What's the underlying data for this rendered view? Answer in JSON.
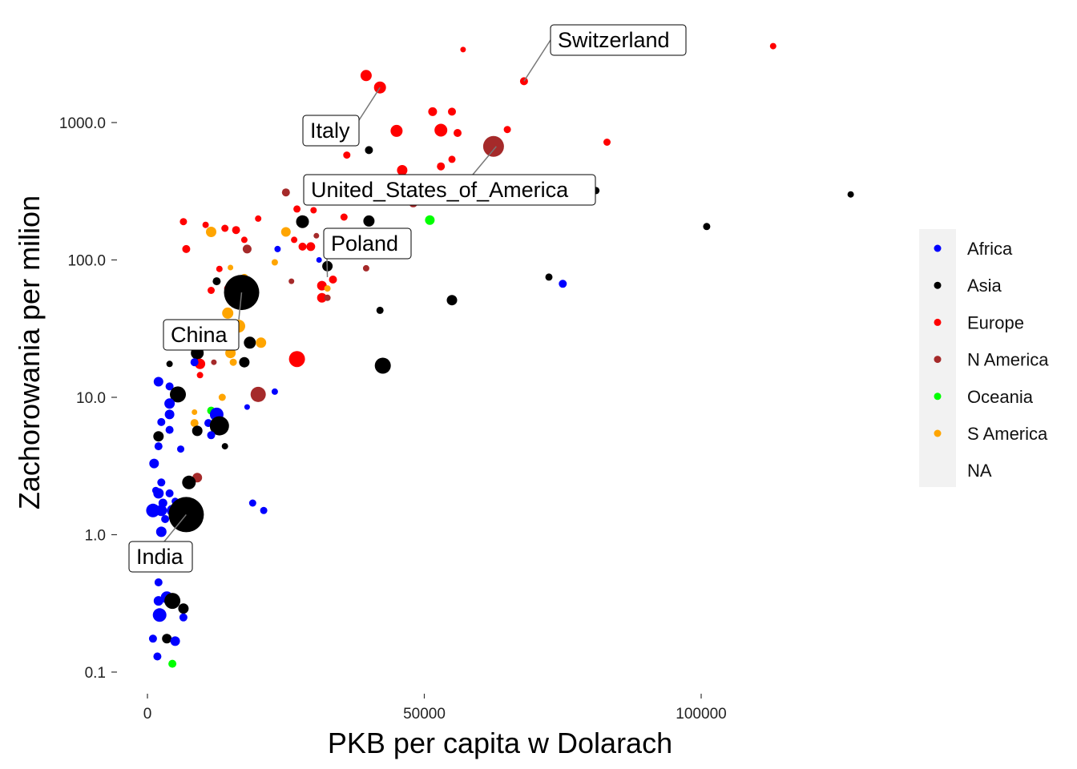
{
  "chart_data": {
    "type": "scatter",
    "xlabel": "PKB per capita w Dolarach",
    "ylabel": "Zachorowania per milion",
    "y_scale": "log10",
    "xlim": [
      -2500,
      135000
    ],
    "ylim": [
      0.08,
      5000
    ],
    "x_ticks": [
      0,
      50000,
      100000
    ],
    "x_tick_labels": [
      "0",
      "50000",
      "100000"
    ],
    "y_ticks": [
      0.1,
      1,
      10,
      100,
      1000
    ],
    "y_tick_labels": [
      "0.1",
      "1.0",
      "10.0",
      "100.0",
      "1000.0"
    ],
    "grid": false,
    "legend_position": "right",
    "legend": [
      {
        "name": "Africa",
        "color": "#0000ff"
      },
      {
        "name": "Asia",
        "color": "#000000"
      },
      {
        "name": "Europe",
        "color": "#ff0000"
      },
      {
        "name": "N America",
        "color": "#a52a2a"
      },
      {
        "name": "Oceania",
        "color": "#00ff00"
      },
      {
        "name": "S America",
        "color": "#ffa500"
      },
      {
        "name": "NA",
        "color": null
      }
    ],
    "annotations": [
      {
        "label": "Switzerland",
        "x": 68000,
        "y": 2000
      },
      {
        "label": "Italy",
        "x": 42000,
        "y": 1800
      },
      {
        "label": "United_States_of_America",
        "x": 63000,
        "y": 670
      },
      {
        "label": "Poland",
        "x": 32500,
        "y": 75
      },
      {
        "label": "China",
        "x": 17000,
        "y": 58
      },
      {
        "label": "India",
        "x": 7000,
        "y": 1.4
      }
    ],
    "points": [
      {
        "x": 113000,
        "y": 3600,
        "r": 4,
        "color": "#ff0000"
      },
      {
        "x": 57000,
        "y": 3400,
        "r": 3.5,
        "color": "#ff0000"
      },
      {
        "x": 39500,
        "y": 2200,
        "r": 7,
        "color": "#ff0000"
      },
      {
        "x": 42000,
        "y": 1800,
        "r": 7.5,
        "color": "#ff0000"
      },
      {
        "x": 68000,
        "y": 2000,
        "r": 5,
        "color": "#ff0000"
      },
      {
        "x": 51500,
        "y": 1200,
        "r": 5.5,
        "color": "#ff0000"
      },
      {
        "x": 55000,
        "y": 1200,
        "r": 5,
        "color": "#ff0000"
      },
      {
        "x": 45000,
        "y": 870,
        "r": 7.5,
        "color": "#ff0000"
      },
      {
        "x": 53000,
        "y": 880,
        "r": 8,
        "color": "#ff0000"
      },
      {
        "x": 56000,
        "y": 840,
        "r": 5,
        "color": "#ff0000"
      },
      {
        "x": 65000,
        "y": 890,
        "r": 4.5,
        "color": "#ff0000"
      },
      {
        "x": 83000,
        "y": 720,
        "r": 4.5,
        "color": "#ff0000"
      },
      {
        "x": 62500,
        "y": 670,
        "r": 13,
        "color": "#a52a2a"
      },
      {
        "x": 40000,
        "y": 630,
        "r": 5,
        "color": "#000000"
      },
      {
        "x": 36000,
        "y": 580,
        "r": 4.5,
        "color": "#ff0000"
      },
      {
        "x": 55000,
        "y": 540,
        "r": 4.5,
        "color": "#ff0000"
      },
      {
        "x": 53000,
        "y": 480,
        "r": 5,
        "color": "#ff0000"
      },
      {
        "x": 46000,
        "y": 450,
        "r": 6.5,
        "color": "#ff0000"
      },
      {
        "x": 48000,
        "y": 260,
        "r": 5.5,
        "color": "#a52a2a"
      },
      {
        "x": 81000,
        "y": 320,
        "r": 4.5,
        "color": "#000000"
      },
      {
        "x": 127000,
        "y": 300,
        "r": 4,
        "color": "#000000"
      },
      {
        "x": 101000,
        "y": 175,
        "r": 4.5,
        "color": "#000000"
      },
      {
        "x": 25000,
        "y": 310,
        "r": 5,
        "color": "#a52a2a"
      },
      {
        "x": 27000,
        "y": 235,
        "r": 4.5,
        "color": "#ff0000"
      },
      {
        "x": 30000,
        "y": 230,
        "r": 4,
        "color": "#ff0000"
      },
      {
        "x": 35500,
        "y": 205,
        "r": 4.5,
        "color": "#ff0000"
      },
      {
        "x": 51000,
        "y": 195,
        "r": 6,
        "color": "#00ff00"
      },
      {
        "x": 40000,
        "y": 192,
        "r": 7,
        "color": "#000000"
      },
      {
        "x": 28000,
        "y": 190,
        "r": 8,
        "color": "#000000"
      },
      {
        "x": 6500,
        "y": 190,
        "r": 4.5,
        "color": "#ff0000"
      },
      {
        "x": 10500,
        "y": 180,
        "r": 4,
        "color": "#ff0000"
      },
      {
        "x": 14000,
        "y": 170,
        "r": 4.5,
        "color": "#ff0000"
      },
      {
        "x": 16000,
        "y": 165,
        "r": 5,
        "color": "#ff0000"
      },
      {
        "x": 20000,
        "y": 200,
        "r": 4,
        "color": "#ff0000"
      },
      {
        "x": 25000,
        "y": 160,
        "r": 6,
        "color": "#ffa500"
      },
      {
        "x": 11500,
        "y": 160,
        "r": 6.5,
        "color": "#ffa500"
      },
      {
        "x": 17500,
        "y": 140,
        "r": 4,
        "color": "#ff0000"
      },
      {
        "x": 26500,
        "y": 140,
        "r": 4,
        "color": "#ff0000"
      },
      {
        "x": 30500,
        "y": 150,
        "r": 3.5,
        "color": "#a52a2a"
      },
      {
        "x": 7000,
        "y": 120,
        "r": 5,
        "color": "#ff0000"
      },
      {
        "x": 18000,
        "y": 120,
        "r": 5.5,
        "color": "#a52a2a"
      },
      {
        "x": 23500,
        "y": 120,
        "r": 4,
        "color": "#0000ff"
      },
      {
        "x": 28000,
        "y": 125,
        "r": 5,
        "color": "#ff0000"
      },
      {
        "x": 29500,
        "y": 125,
        "r": 5.5,
        "color": "#ff0000"
      },
      {
        "x": 23000,
        "y": 96,
        "r": 4,
        "color": "#ffa500"
      },
      {
        "x": 32500,
        "y": 90,
        "r": 6.5,
        "color": "#000000"
      },
      {
        "x": 31000,
        "y": 100,
        "r": 3.5,
        "color": "#0000ff"
      },
      {
        "x": 13000,
        "y": 86,
        "r": 4,
        "color": "#ff0000"
      },
      {
        "x": 15000,
        "y": 88,
        "r": 3.5,
        "color": "#ffa500"
      },
      {
        "x": 39500,
        "y": 87,
        "r": 4,
        "color": "#a52a2a"
      },
      {
        "x": 33500,
        "y": 72,
        "r": 5,
        "color": "#ff0000"
      },
      {
        "x": 26000,
        "y": 70,
        "r": 3.5,
        "color": "#a52a2a"
      },
      {
        "x": 12500,
        "y": 70,
        "r": 5,
        "color": "#000000"
      },
      {
        "x": 17500,
        "y": 74,
        "r": 5,
        "color": "#ffa500"
      },
      {
        "x": 31500,
        "y": 65,
        "r": 6,
        "color": "#ff0000"
      },
      {
        "x": 32500,
        "y": 62,
        "r": 4,
        "color": "#ffa500"
      },
      {
        "x": 11500,
        "y": 60,
        "r": 4.5,
        "color": "#ff0000"
      },
      {
        "x": 14500,
        "y": 62,
        "r": 4.5,
        "color": "#ff0000"
      },
      {
        "x": 17000,
        "y": 58,
        "r": 22,
        "color": "#000000"
      },
      {
        "x": 31500,
        "y": 53,
        "r": 6,
        "color": "#ff0000"
      },
      {
        "x": 32500,
        "y": 53,
        "r": 4,
        "color": "#a52a2a"
      },
      {
        "x": 72500,
        "y": 75,
        "r": 4.5,
        "color": "#000000"
      },
      {
        "x": 75000,
        "y": 67,
        "r": 5,
        "color": "#0000ff"
      },
      {
        "x": 55000,
        "y": 51,
        "r": 6.5,
        "color": "#000000"
      },
      {
        "x": 42000,
        "y": 43,
        "r": 4.5,
        "color": "#000000"
      },
      {
        "x": 14500,
        "y": 41,
        "r": 7,
        "color": "#ffa500"
      },
      {
        "x": 16500,
        "y": 33,
        "r": 8,
        "color": "#ffa500"
      },
      {
        "x": 18500,
        "y": 25,
        "r": 7.5,
        "color": "#000000"
      },
      {
        "x": 20500,
        "y": 25,
        "r": 6.5,
        "color": "#ffa500"
      },
      {
        "x": 9000,
        "y": 21,
        "r": 8,
        "color": "#000000"
      },
      {
        "x": 15000,
        "y": 21,
        "r": 6.5,
        "color": "#ffa500"
      },
      {
        "x": 27000,
        "y": 19,
        "r": 10,
        "color": "#ff0000"
      },
      {
        "x": 9500,
        "y": 17.5,
        "r": 6.5,
        "color": "#ff0000"
      },
      {
        "x": 12000,
        "y": 18,
        "r": 3.5,
        "color": "#a52a2a"
      },
      {
        "x": 4000,
        "y": 17.5,
        "r": 4,
        "color": "#000000"
      },
      {
        "x": 8500,
        "y": 18,
        "r": 5,
        "color": "#0000ff"
      },
      {
        "x": 15500,
        "y": 18,
        "r": 4.5,
        "color": "#ffa500"
      },
      {
        "x": 17500,
        "y": 18,
        "r": 6.5,
        "color": "#000000"
      },
      {
        "x": 42500,
        "y": 17,
        "r": 10,
        "color": "#000000"
      },
      {
        "x": 9500,
        "y": 14.5,
        "r": 4,
        "color": "#ff0000"
      },
      {
        "x": 2000,
        "y": 13,
        "r": 6,
        "color": "#0000ff"
      },
      {
        "x": 4000,
        "y": 12,
        "r": 5,
        "color": "#0000ff"
      },
      {
        "x": 5500,
        "y": 10.5,
        "r": 10,
        "color": "#000000"
      },
      {
        "x": 20000,
        "y": 10.5,
        "r": 9.5,
        "color": "#a52a2a"
      },
      {
        "x": 23000,
        "y": 11,
        "r": 4,
        "color": "#0000ff"
      },
      {
        "x": 4000,
        "y": 9,
        "r": 6.5,
        "color": "#0000ff"
      },
      {
        "x": 13500,
        "y": 10,
        "r": 4.5,
        "color": "#ffa500"
      },
      {
        "x": 18000,
        "y": 8.5,
        "r": 3.5,
        "color": "#0000ff"
      },
      {
        "x": 4000,
        "y": 7.5,
        "r": 6,
        "color": "#0000ff"
      },
      {
        "x": 8500,
        "y": 7.8,
        "r": 3.5,
        "color": "#ffa500"
      },
      {
        "x": 11500,
        "y": 8,
        "r": 5,
        "color": "#00ff00"
      },
      {
        "x": 12500,
        "y": 7.5,
        "r": 8.5,
        "color": "#0000ff"
      },
      {
        "x": 2500,
        "y": 6.6,
        "r": 5,
        "color": "#0000ff"
      },
      {
        "x": 8500,
        "y": 6.5,
        "r": 5,
        "color": "#ffa500"
      },
      {
        "x": 11000,
        "y": 6.5,
        "r": 5,
        "color": "#0000ff"
      },
      {
        "x": 13000,
        "y": 6.2,
        "r": 12,
        "color": "#000000"
      },
      {
        "x": 9000,
        "y": 5.7,
        "r": 6.5,
        "color": "#000000"
      },
      {
        "x": 4000,
        "y": 5.8,
        "r": 5,
        "color": "#0000ff"
      },
      {
        "x": 2000,
        "y": 5.2,
        "r": 6.5,
        "color": "#000000"
      },
      {
        "x": 11500,
        "y": 5.3,
        "r": 5,
        "color": "#0000ff"
      },
      {
        "x": 6000,
        "y": 4.2,
        "r": 4.5,
        "color": "#0000ff"
      },
      {
        "x": 14000,
        "y": 4.4,
        "r": 4,
        "color": "#000000"
      },
      {
        "x": 2000,
        "y": 4.4,
        "r": 5,
        "color": "#0000ff"
      },
      {
        "x": 1200,
        "y": 3.3,
        "r": 6,
        "color": "#0000ff"
      },
      {
        "x": 9000,
        "y": 2.6,
        "r": 6,
        "color": "#a52a2a"
      },
      {
        "x": 7500,
        "y": 2.4,
        "r": 8.5,
        "color": "#000000"
      },
      {
        "x": 2500,
        "y": 2.4,
        "r": 5,
        "color": "#0000ff"
      },
      {
        "x": 1500,
        "y": 2.1,
        "r": 4.5,
        "color": "#0000ff"
      },
      {
        "x": 2000,
        "y": 2.0,
        "r": 6.5,
        "color": "#0000ff"
      },
      {
        "x": 4000,
        "y": 2.0,
        "r": 5,
        "color": "#0000ff"
      },
      {
        "x": 5000,
        "y": 1.75,
        "r": 4.5,
        "color": "#0000ff"
      },
      {
        "x": 2800,
        "y": 1.7,
        "r": 5.5,
        "color": "#0000ff"
      },
      {
        "x": 19000,
        "y": 1.7,
        "r": 4.5,
        "color": "#0000ff"
      },
      {
        "x": 21000,
        "y": 1.5,
        "r": 4.5,
        "color": "#0000ff"
      },
      {
        "x": 1000,
        "y": 1.5,
        "r": 8.5,
        "color": "#0000ff"
      },
      {
        "x": 2500,
        "y": 1.5,
        "r": 7,
        "color": "#0000ff"
      },
      {
        "x": 4500,
        "y": 1.5,
        "r": 7,
        "color": "#0000ff"
      },
      {
        "x": 3200,
        "y": 1.3,
        "r": 5,
        "color": "#0000ff"
      },
      {
        "x": 7000,
        "y": 1.4,
        "r": 22,
        "color": "#000000"
      },
      {
        "x": 2500,
        "y": 1.05,
        "r": 6.5,
        "color": "#0000ff"
      },
      {
        "x": 3500,
        "y": 0.6,
        "r": 5,
        "color": "#0000ff"
      },
      {
        "x": 2000,
        "y": 0.45,
        "r": 5,
        "color": "#0000ff"
      },
      {
        "x": 2000,
        "y": 0.33,
        "r": 6,
        "color": "#0000ff"
      },
      {
        "x": 3500,
        "y": 0.35,
        "r": 7.5,
        "color": "#0000ff"
      },
      {
        "x": 4500,
        "y": 0.33,
        "r": 10,
        "color": "#000000"
      },
      {
        "x": 6500,
        "y": 0.29,
        "r": 6.5,
        "color": "#000000"
      },
      {
        "x": 2200,
        "y": 0.26,
        "r": 8.5,
        "color": "#0000ff"
      },
      {
        "x": 6500,
        "y": 0.25,
        "r": 5,
        "color": "#0000ff"
      },
      {
        "x": 1000,
        "y": 0.175,
        "r": 5,
        "color": "#0000ff"
      },
      {
        "x": 3500,
        "y": 0.175,
        "r": 6,
        "color": "#000000"
      },
      {
        "x": 5000,
        "y": 0.168,
        "r": 6,
        "color": "#0000ff"
      },
      {
        "x": 1800,
        "y": 0.13,
        "r": 5,
        "color": "#0000ff"
      },
      {
        "x": 4500,
        "y": 0.115,
        "r": 5,
        "color": "#00ff00"
      }
    ]
  }
}
